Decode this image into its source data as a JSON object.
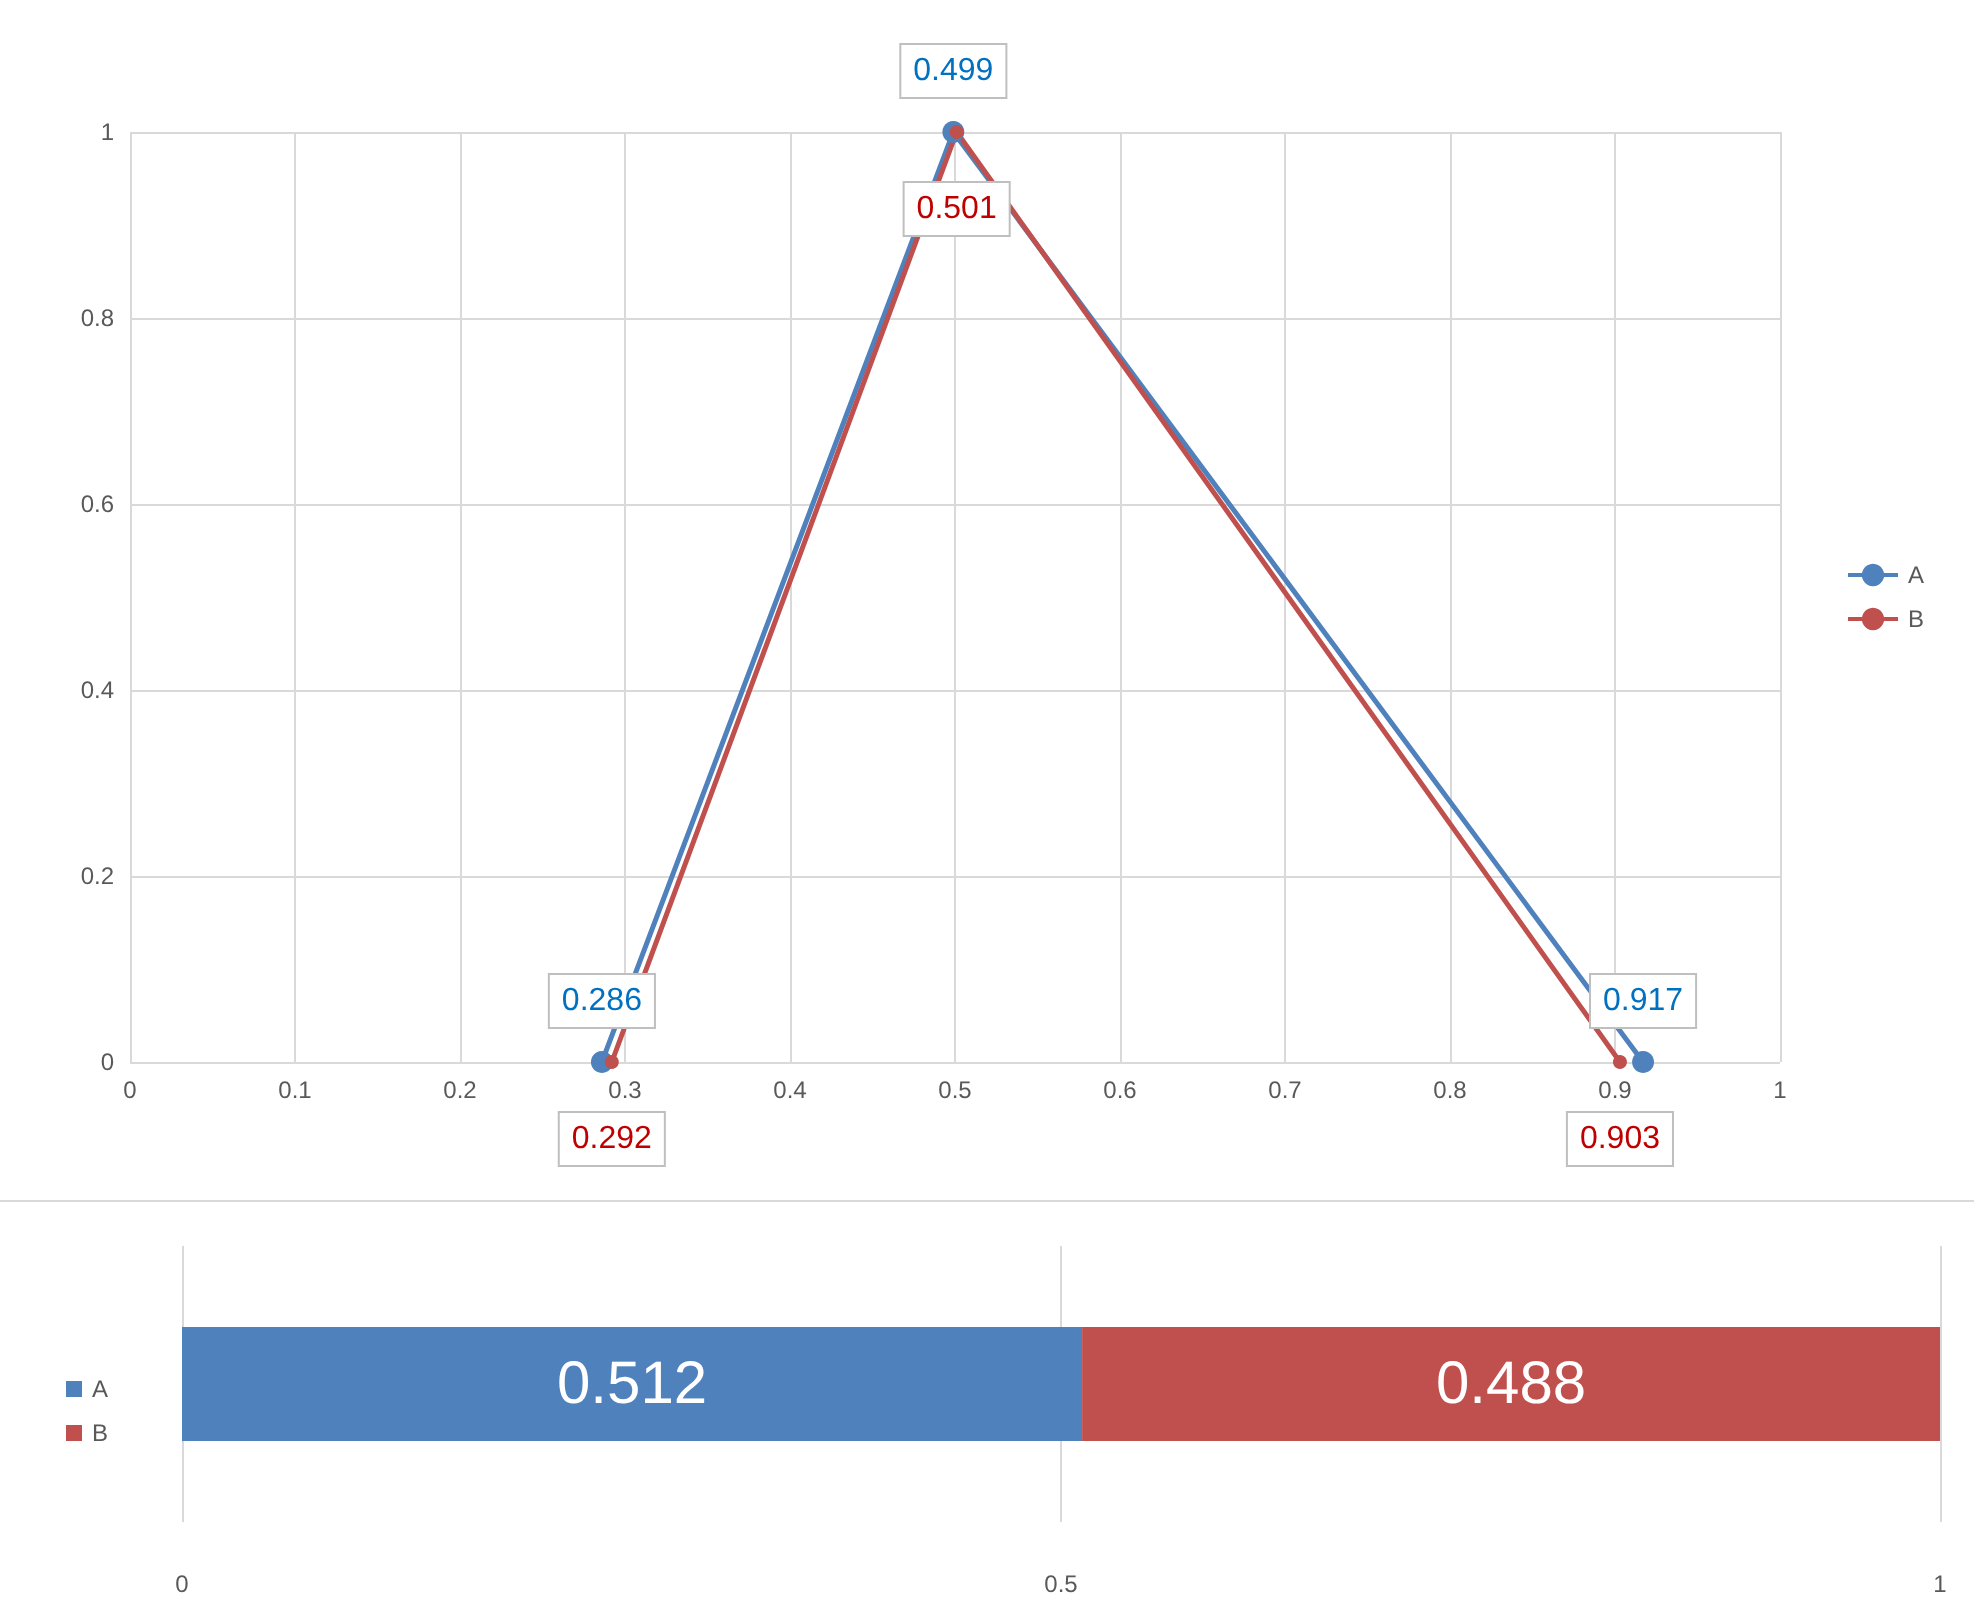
{
  "chart_data": [
    {
      "type": "line",
      "series": [
        {
          "name": "A",
          "color": "#4f81bd",
          "x": [
            0.286,
            0.499,
            0.917
          ],
          "values": [
            0,
            1,
            0
          ]
        },
        {
          "name": "B",
          "color": "#c0504d",
          "x": [
            0.292,
            0.501,
            0.903
          ],
          "values": [
            0,
            1,
            0
          ]
        }
      ],
      "annotations": [
        {
          "text": "0.286",
          "x": 0.286,
          "y": 0
        },
        {
          "text": "0.499",
          "x": 0.499,
          "y": 1
        },
        {
          "text": "0.917",
          "x": 0.917,
          "y": 0
        },
        {
          "text": "0.292",
          "x": 0.292,
          "y": 0
        },
        {
          "text": "0.501",
          "x": 0.501,
          "y": 1
        },
        {
          "text": "0.903",
          "x": 0.903,
          "y": 0
        }
      ],
      "xlim": [
        0,
        1
      ],
      "xticks": [
        0,
        0.1,
        0.2,
        0.3,
        0.4,
        0.5,
        0.6,
        0.7,
        0.8,
        0.9,
        1
      ],
      "ylim": [
        0,
        1
      ],
      "yticks": [
        0,
        0.2,
        0.4,
        0.6,
        0.8,
        1
      ],
      "grid": true,
      "legend": "right",
      "marker": "circle"
    },
    {
      "type": "bar",
      "orientation": "horizontal",
      "stacked": true,
      "categories": [
        null
      ],
      "series": [
        {
          "name": "A",
          "color": "#4f81bd",
          "values": [
            0.512
          ]
        },
        {
          "name": "B",
          "color": "#c0504d",
          "values": [
            0.488
          ]
        }
      ],
      "xlim": [
        0,
        1
      ],
      "xticks": [
        0,
        0.5,
        1
      ],
      "grid": "x",
      "legend": "left",
      "data_labels": true
    }
  ]
}
